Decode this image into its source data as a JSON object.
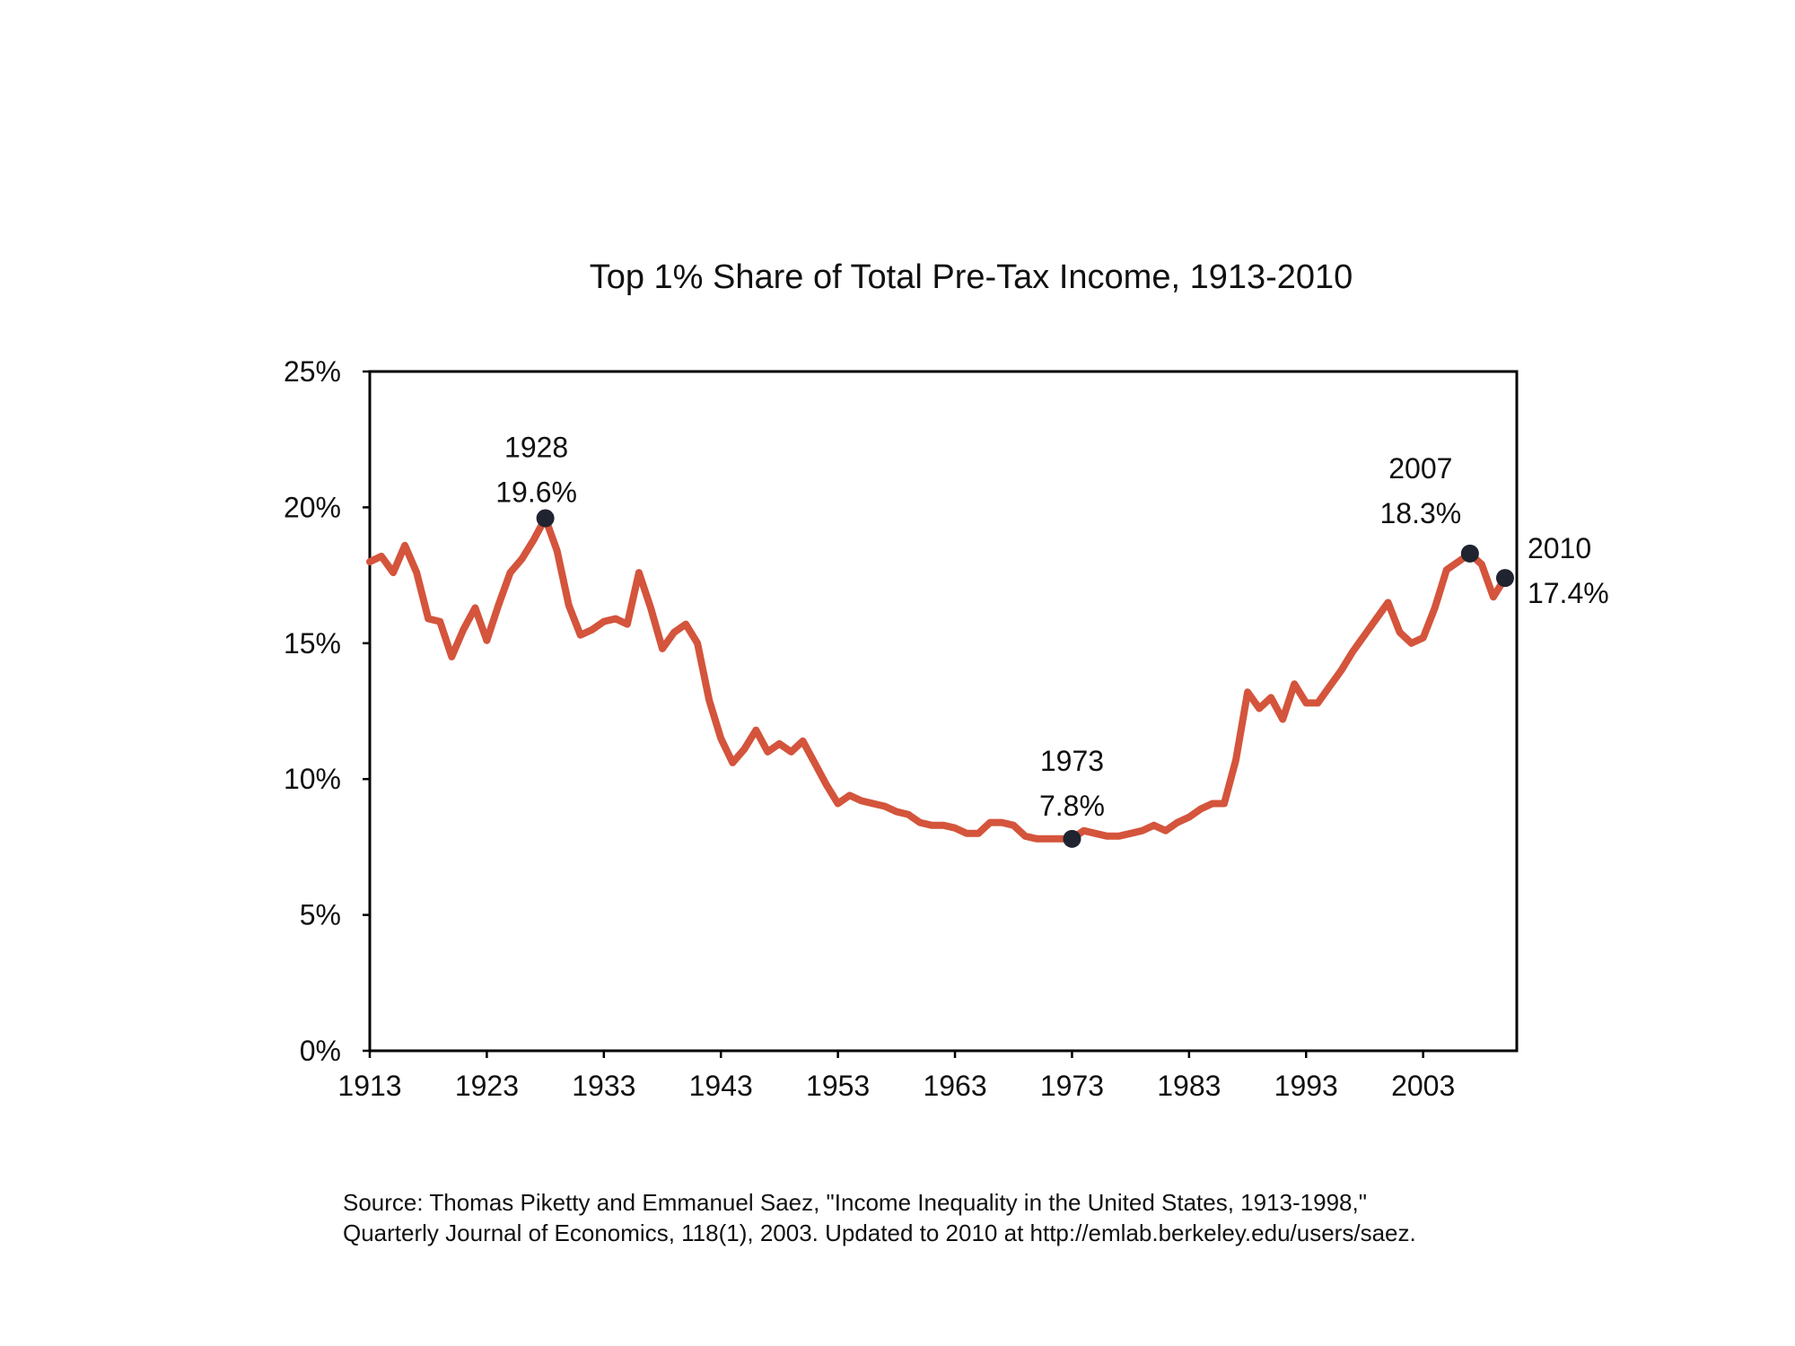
{
  "chart_data": {
    "type": "line",
    "title": "Top 1% Share of Total Pre-Tax Income, 1913-2010",
    "xlabel": "",
    "ylabel": "",
    "xlim": [
      1913,
      2011
    ],
    "ylim": [
      0,
      25
    ],
    "x_ticks": [
      1913,
      1923,
      1933,
      1943,
      1953,
      1963,
      1973,
      1983,
      1993,
      2003
    ],
    "y_ticks": [
      0,
      5,
      10,
      15,
      20,
      25
    ],
    "y_tick_labels": [
      "0%",
      "5%",
      "10%",
      "15%",
      "20%",
      "25%"
    ],
    "grid": false,
    "line_color": "#d4543c",
    "marker_color": "#1f2430",
    "series": [
      {
        "x": [
          1913,
          1914,
          1915,
          1916,
          1917,
          1918,
          1919,
          1920,
          1921,
          1922,
          1923,
          1924,
          1925,
          1926,
          1927,
          1928,
          1929,
          1930,
          1931,
          1932,
          1933,
          1934,
          1935,
          1936,
          1937,
          1938,
          1939,
          1940,
          1941,
          1942,
          1943,
          1944,
          1945,
          1946,
          1947,
          1948,
          1949,
          1950,
          1951,
          1952,
          1953,
          1954,
          1955,
          1956,
          1957,
          1958,
          1959,
          1960,
          1961,
          1962,
          1963,
          1964,
          1965,
          1966,
          1967,
          1968,
          1969,
          1970,
          1971,
          1972,
          1973,
          1974,
          1975,
          1976,
          1977,
          1978,
          1979,
          1980,
          1981,
          1982,
          1983,
          1984,
          1985,
          1986,
          1987,
          1988,
          1989,
          1990,
          1991,
          1992,
          1993,
          1994,
          1995,
          1996,
          1997,
          1998,
          1999,
          2000,
          2001,
          2002,
          2003,
          2004,
          2005,
          2006,
          2007,
          2008,
          2009,
          2010
        ],
        "y": [
          18.0,
          18.2,
          17.6,
          18.6,
          17.6,
          15.9,
          15.8,
          14.5,
          15.5,
          16.3,
          15.1,
          16.4,
          17.6,
          18.1,
          18.8,
          19.6,
          18.4,
          16.4,
          15.3,
          15.5,
          15.8,
          15.9,
          15.7,
          17.6,
          16.3,
          14.8,
          15.4,
          15.7,
          15.0,
          12.9,
          11.5,
          10.6,
          11.1,
          11.8,
          11.0,
          11.3,
          11.0,
          11.4,
          10.6,
          9.8,
          9.1,
          9.4,
          9.2,
          9.1,
          9.0,
          8.8,
          8.7,
          8.4,
          8.3,
          8.3,
          8.2,
          8.0,
          8.0,
          8.4,
          8.4,
          8.3,
          7.9,
          7.8,
          7.8,
          7.8,
          7.8,
          8.1,
          8.0,
          7.9,
          7.9,
          8.0,
          8.1,
          8.3,
          8.1,
          8.4,
          8.6,
          8.9,
          9.1,
          9.1,
          10.7,
          13.2,
          12.6,
          13.0,
          12.2,
          13.5,
          12.8,
          12.8,
          13.4,
          14.0,
          14.7,
          15.3,
          15.9,
          16.5,
          15.4,
          15.0,
          15.2,
          16.3,
          17.7,
          18.0,
          18.3,
          17.9,
          16.7,
          17.4
        ]
      }
    ],
    "annotations": [
      {
        "year": 1928,
        "value": 19.6,
        "year_label": "1928",
        "value_label": "19.6%"
      },
      {
        "year": 1973,
        "value": 7.8,
        "year_label": "1973",
        "value_label": "7.8%"
      },
      {
        "year": 2007,
        "value": 18.3,
        "year_label": "2007",
        "value_label": "18.3%"
      },
      {
        "year": 2010,
        "value": 17.4,
        "year_label": "2010",
        "value_label": "17.4%"
      }
    ]
  },
  "source": {
    "line1": "Source: Thomas Piketty and Emmanuel Saez, \"Income Inequality in the United States, 1913-1998,\"",
    "line2": "Quarterly Journal of Economics, 118(1), 2003. Updated to 2010 at http://emlab.berkeley.edu/users/saez."
  }
}
